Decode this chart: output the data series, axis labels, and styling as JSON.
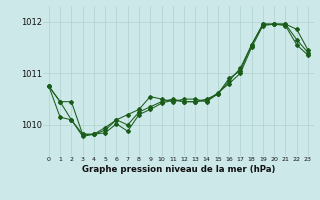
{
  "title": "Graphe pression niveau de la mer (hPa)",
  "x_labels": [
    "0",
    "1",
    "2",
    "3",
    "4",
    "5",
    "6",
    "7",
    "8",
    "9",
    "10",
    "11",
    "12",
    "13",
    "14",
    "15",
    "16",
    "17",
    "18",
    "19",
    "20",
    "21",
    "22",
    "23"
  ],
  "ylim": [
    1009.4,
    1012.3
  ],
  "yticks": [
    1010,
    1011,
    1012
  ],
  "background_color": "#cde8e8",
  "grid_color": "#b0d0d0",
  "line_color": "#1a5c1a",
  "series1": [
    1010.75,
    1010.45,
    1010.45,
    1009.82,
    1009.82,
    1009.95,
    1010.1,
    1010.2,
    1010.3,
    1010.55,
    1010.5,
    1010.45,
    1010.5,
    1010.5,
    1010.45,
    1010.6,
    1010.85,
    1011.1,
    1011.55,
    1011.95,
    1011.95,
    1011.95,
    1011.65,
    1011.4
  ],
  "series2": [
    1010.75,
    1010.45,
    1010.1,
    1009.82,
    1009.82,
    1009.9,
    1010.1,
    1010.0,
    1010.25,
    1010.35,
    1010.45,
    1010.5,
    1010.45,
    1010.45,
    1010.5,
    1010.6,
    1010.9,
    1011.05,
    1011.55,
    1011.95,
    1011.95,
    1011.95,
    1011.85,
    1011.45
  ],
  "series3": [
    1010.75,
    1010.15,
    1010.1,
    1009.78,
    1009.82,
    1009.85,
    1010.02,
    1009.88,
    1010.2,
    1010.3,
    1010.42,
    1010.48,
    1010.45,
    1010.45,
    1010.47,
    1010.62,
    1010.8,
    1011.0,
    1011.5,
    1011.92,
    1011.95,
    1011.92,
    1011.55,
    1011.35
  ]
}
